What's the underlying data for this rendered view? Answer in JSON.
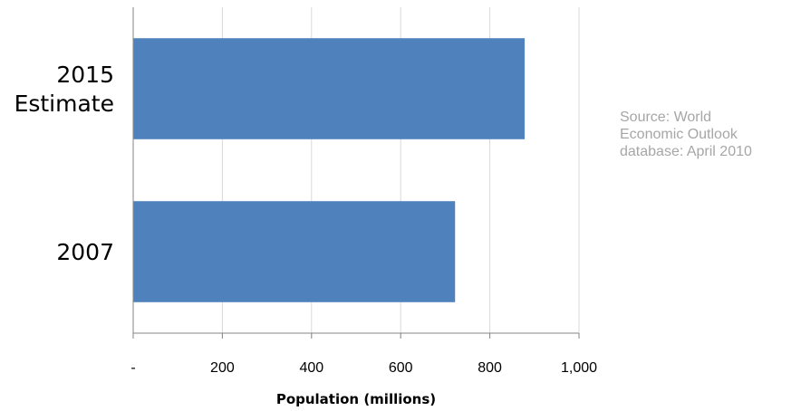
{
  "chart_data": {
    "type": "bar",
    "orientation": "horizontal",
    "categories": [
      [
        "2015",
        "Estimate"
      ],
      [
        "2007"
      ]
    ],
    "values": [
      878,
      722
    ],
    "xlabel": "Population (millions)",
    "ylabel": "",
    "xlim": [
      0,
      1000
    ],
    "xticks": [
      0,
      200,
      400,
      600,
      800,
      1000
    ],
    "xtick_labels": [
      "-",
      "200",
      "400",
      "600",
      "800",
      "1,000"
    ],
    "grid": "vertical",
    "bar_color": "#4f81bd",
    "gridline_color": "#d9d9d9",
    "axis_color": "#868686"
  },
  "source_note": [
    "Source: World",
    "Economic Outlook",
    "database: April 2010"
  ],
  "source_note_color": "#a6a6a6"
}
